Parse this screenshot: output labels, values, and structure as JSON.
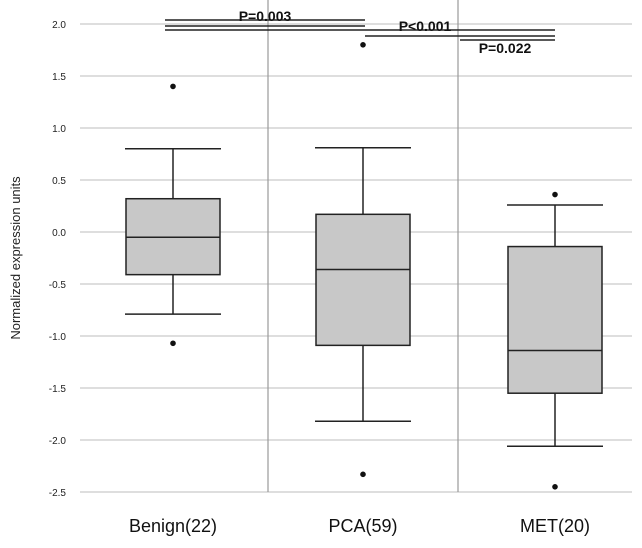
{
  "chart_data": {
    "type": "box",
    "title": "",
    "xlabel": "",
    "ylabel": "Normalized expression units",
    "ylim": [
      -2.5,
      2.0
    ],
    "yticks": [
      "2.0",
      "1.5",
      "1.0",
      "0.5",
      "0.0",
      "-0.5",
      "-1.0",
      "-1.5",
      "-2.0",
      "-2.5"
    ],
    "grid": "horizontal",
    "categories": [
      "Benign(22)",
      "PCA(59)",
      "MET(20)"
    ],
    "boxes": [
      {
        "whisker_low": -0.79,
        "q1": -0.41,
        "median": -0.05,
        "q3": 0.32,
        "whisker_high": 0.8,
        "outliers": [
          1.4,
          -1.07
        ]
      },
      {
        "whisker_low": -1.82,
        "q1": -1.09,
        "median": -0.36,
        "q3": 0.17,
        "whisker_high": 0.81,
        "outliers": [
          1.8,
          -2.33
        ]
      },
      {
        "whisker_low": -2.06,
        "q1": -1.55,
        "median": -1.14,
        "q3": -0.14,
        "whisker_high": 0.26,
        "outliers": [
          0.36,
          -2.45
        ]
      }
    ],
    "annotations": [
      {
        "text": "P=0.003",
        "from": 0,
        "to": 1
      },
      {
        "text": "P<0.001",
        "from": 0,
        "to": 2
      },
      {
        "text": "P=0.022",
        "from": 1,
        "to": 2
      }
    ],
    "colors": {
      "box_fill": "#c8c8c8",
      "line": "#222222",
      "grid": "#bdbdbd"
    }
  }
}
